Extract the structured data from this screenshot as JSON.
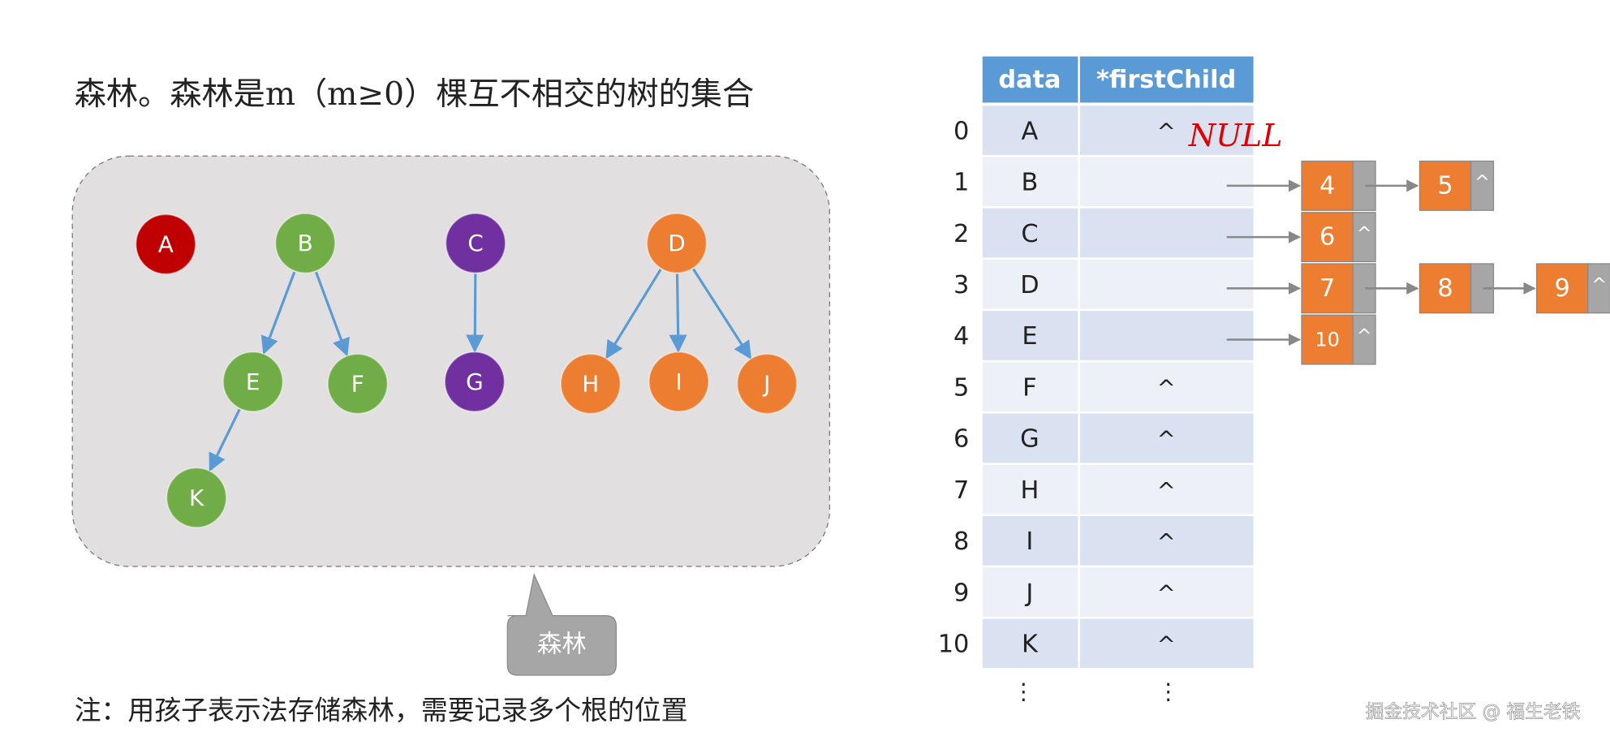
{
  "title": "森林。森林是m（m≥0）棵互不相交的树的集合",
  "forest": {
    "nodes": [
      {
        "label": "A",
        "color": "#c00000"
      },
      {
        "label": "B",
        "color": "#70ad47"
      },
      {
        "label": "C",
        "color": "#7030a0"
      },
      {
        "label": "D",
        "color": "#ed7d31"
      },
      {
        "label": "E",
        "color": "#70ad47"
      },
      {
        "label": "F",
        "color": "#70ad47"
      },
      {
        "label": "G",
        "color": "#7030a0"
      },
      {
        "label": "H",
        "color": "#ed7d31"
      },
      {
        "label": "I",
        "color": "#ed7d31"
      },
      {
        "label": "J",
        "color": "#ed7d31"
      },
      {
        "label": "K",
        "color": "#70ad47"
      }
    ],
    "callout": "森林"
  },
  "table": {
    "headers": [
      "data",
      "*firstChild"
    ],
    "rows": [
      {
        "index": 0,
        "data": "A",
        "firstChild": "^"
      },
      {
        "index": 1,
        "data": "B",
        "children": [
          4,
          5
        ]
      },
      {
        "index": 2,
        "data": "C",
        "children": [
          6
        ]
      },
      {
        "index": 3,
        "data": "D",
        "children": [
          7,
          8,
          9
        ]
      },
      {
        "index": 4,
        "data": "E",
        "children": [
          10
        ]
      },
      {
        "index": 5,
        "data": "F",
        "firstChild": "^"
      },
      {
        "index": 6,
        "data": "G",
        "firstChild": "^"
      },
      {
        "index": 7,
        "data": "H",
        "firstChild": "^"
      },
      {
        "index": 8,
        "data": "I",
        "firstChild": "^"
      },
      {
        "index": 9,
        "data": "J",
        "firstChild": "^"
      },
      {
        "index": 10,
        "data": "K",
        "firstChild": "^"
      }
    ],
    "ellipsis": "⋮",
    "null_mark": "^",
    "null_note": "NULL"
  },
  "note": "注：用孩子表示法存储森林，需要记录多个根的位置",
  "watermark": "掘金技术社区 @ 福生老铁"
}
